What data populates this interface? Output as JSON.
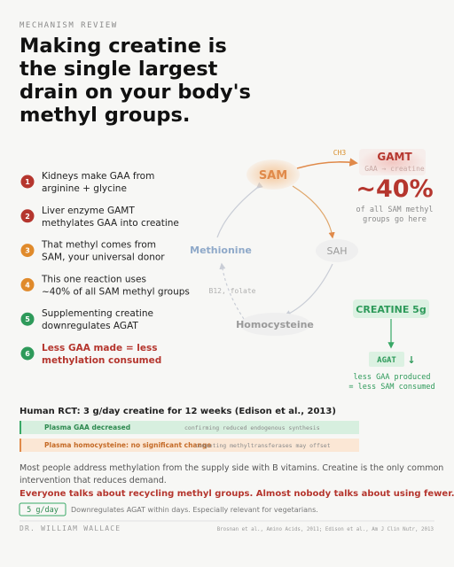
{
  "header": {
    "kicker": "MECHANISM REVIEW",
    "title_lines": [
      "Making creatine is",
      "the single largest",
      "drain on your body's",
      "methyl groups."
    ]
  },
  "steps": [
    {
      "number": "1",
      "lines": [
        "Kidneys make GAA from",
        "arginine + glycine"
      ]
    },
    {
      "number": "2",
      "lines": [
        "Liver enzyme GAMT",
        "methylates GAA into creatine"
      ]
    },
    {
      "number": "3",
      "lines": [
        "That methyl comes from",
        "SAM, your universal donor"
      ]
    },
    {
      "number": "4",
      "lines": [
        "This one reaction uses",
        "~40% of all SAM methyl groups"
      ]
    },
    {
      "number": "5",
      "lines": [
        "Supplementing creatine",
        "downregulates AGAT"
      ]
    },
    {
      "number": "6",
      "lines": [
        "Less GAA made = less",
        "methylation consumed"
      ]
    }
  ],
  "diagram": {
    "sam": "SAM",
    "sah": "SAH",
    "homocysteine": "Homocysteine",
    "methionine": "Methionine",
    "ch3": "CH3",
    "cofactors": "B12, folate",
    "gamt": {
      "name": "GAMT",
      "reaction": "GAA → creatine",
      "share": "~40%",
      "note_lines": [
        "of all SAM methyl",
        "groups go here"
      ]
    },
    "creatine": {
      "label": "CREATINE 5g",
      "agat": "AGAT",
      "arrow": "↓",
      "note_lines": [
        "less GAA produced",
        "= less SAM consumed"
      ]
    }
  },
  "rct": {
    "title": "Human RCT: 3 g/day creatine for 12 weeks (Edison et al., 2013)",
    "rows": [
      [
        "Plasma GAA decreased",
        "confirming reduced endogenous synthesis"
      ],
      [
        "Plasma homocysteine: no significant change",
        "competing methyltransferases may offset"
      ]
    ]
  },
  "body": {
    "lines": [
      "Most people address methylation from the supply side with B vitamins. Creatine is the only common",
      "intervention that reduces demand."
    ],
    "highlight": "Everyone talks about recycling methyl groups. Almost nobody talks about using fewer.",
    "tag": "5 g/day",
    "tag_note": "Downregulates AGAT within days. Especially relevant for vegetarians."
  },
  "footer": {
    "author": "DR. WILLIAM WALLACE",
    "sources": "Brosnan et al., Amino Acids, 2011; Edison et al., Am J Clin Nutr, 2013"
  }
}
